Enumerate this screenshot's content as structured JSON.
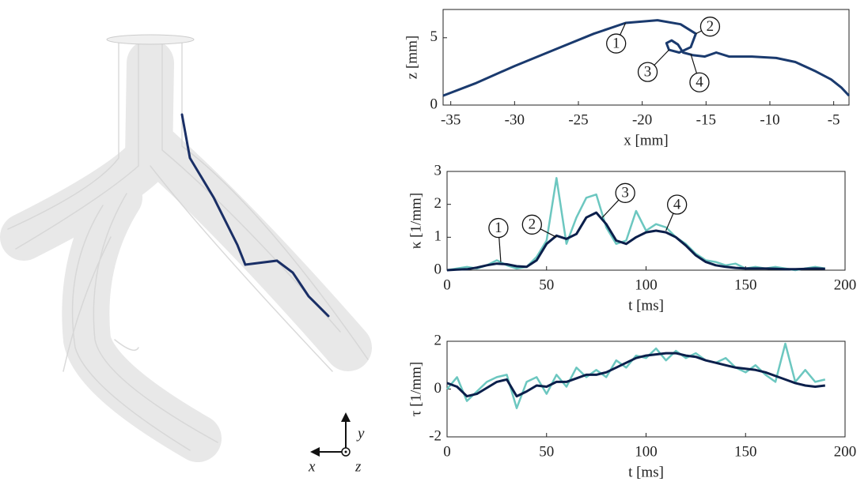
{
  "illustration": {
    "x_label": "x",
    "y_label": "y",
    "z_label": "z"
  },
  "chart_data": [
    {
      "type": "line",
      "xlabel": "x [mm]",
      "ylabel": "z [mm]",
      "xlim": [
        -35.6,
        -3.8
      ],
      "ylim": [
        0,
        7.1
      ],
      "xticks": [
        -35,
        -30,
        -25,
        -20,
        -15,
        -10,
        -5
      ],
      "yticks": [
        0,
        5
      ],
      "x": [
        -35.6,
        -33.1,
        -30,
        -26.9,
        -23.8,
        -21.3,
        -18.8,
        -17,
        -15.8,
        -16.2,
        -17.1,
        -17.9,
        -18.1,
        -17.7,
        -17.2,
        -16.8,
        -16,
        -15.1,
        -14.2,
        -13.2,
        -11.4,
        -9.5,
        -8,
        -6.4,
        -5.2,
        -4.4,
        -3.8
      ],
      "series": [
        {
          "color": "#1a3a6e",
          "values": [
            0.7,
            1.6,
            2.9,
            4.1,
            5.3,
            6.1,
            6.3,
            6.0,
            5.3,
            4.3,
            3.9,
            4.1,
            4.6,
            4.8,
            4.5,
            3.9,
            3.7,
            3.6,
            3.9,
            3.6,
            3.6,
            3.5,
            3.2,
            2.5,
            1.9,
            1.3,
            0.7
          ]
        }
      ],
      "annotations": [
        {
          "text": "1",
          "x": -21.3,
          "y": 6.1
        },
        {
          "text": "2",
          "x": -15.8,
          "y": 5.3
        },
        {
          "text": "3",
          "x": -17.9,
          "y": 4.1
        },
        {
          "text": "4",
          "x": -16.2,
          "y": 3.8
        }
      ]
    },
    {
      "type": "line",
      "xlabel": "t [ms]",
      "ylabel": "κ [1/mm]",
      "xlim": [
        0,
        200
      ],
      "ylim": [
        0,
        3
      ],
      "xticks": [
        0,
        50,
        100,
        150,
        200
      ],
      "yticks": [
        0,
        1,
        2,
        3
      ],
      "x": [
        0,
        5,
        10,
        15,
        20,
        25,
        30,
        35,
        40,
        45,
        50,
        55,
        60,
        65,
        70,
        75,
        80,
        85,
        90,
        95,
        100,
        105,
        110,
        115,
        120,
        125,
        130,
        135,
        140,
        145,
        150,
        155,
        160,
        165,
        170,
        175,
        180,
        185,
        190
      ],
      "series": [
        {
          "color": "#6cc7c0",
          "values": [
            0,
            0.05,
            0.1,
            0.05,
            0.15,
            0.3,
            0.15,
            0.05,
            0.1,
            0.4,
            0.9,
            2.8,
            0.8,
            1.6,
            2.2,
            2.3,
            1.3,
            0.8,
            0.9,
            1.8,
            1.2,
            1.4,
            1.3,
            1.0,
            0.8,
            0.5,
            0.3,
            0.25,
            0.15,
            0.2,
            0.05,
            0.1,
            0.05,
            0.1,
            0.05,
            0,
            0.05,
            0.1,
            0.05
          ]
        },
        {
          "color": "#0b1f4b",
          "values": [
            0,
            0.02,
            0.03,
            0.08,
            0.15,
            0.2,
            0.18,
            0.12,
            0.1,
            0.3,
            0.8,
            1.05,
            0.95,
            1.1,
            1.6,
            1.75,
            1.4,
            0.9,
            0.8,
            1.0,
            1.15,
            1.2,
            1.15,
            1.0,
            0.75,
            0.45,
            0.25,
            0.15,
            0.1,
            0.07,
            0.05,
            0.05,
            0.05,
            0.04,
            0.03,
            0.03,
            0.04,
            0.05,
            0.04
          ]
        }
      ],
      "annotations": [
        {
          "text": "1",
          "x": 27,
          "y": 0.25
        },
        {
          "text": "2",
          "x": 55,
          "y": 1.0
        },
        {
          "text": "3",
          "x": 78,
          "y": 1.6
        },
        {
          "text": "4",
          "x": 110,
          "y": 1.2
        }
      ]
    },
    {
      "type": "line",
      "xlabel": "t [ms]",
      "ylabel": "τ [1/mm]",
      "xlim": [
        0,
        200
      ],
      "ylim": [
        -2,
        2
      ],
      "xticks": [
        0,
        50,
        100,
        150,
        200
      ],
      "yticks": [
        -2,
        0,
        2
      ],
      "x": [
        0,
        5,
        10,
        15,
        20,
        25,
        30,
        35,
        40,
        45,
        50,
        55,
        60,
        65,
        70,
        75,
        80,
        85,
        90,
        95,
        100,
        105,
        110,
        115,
        120,
        125,
        130,
        135,
        140,
        145,
        150,
        155,
        160,
        165,
        170,
        175,
        180,
        185,
        190
      ],
      "series": [
        {
          "color": "#6cc7c0",
          "values": [
            0,
            0.5,
            -0.5,
            -0.1,
            0.3,
            0.5,
            0.6,
            -0.8,
            0.3,
            0.5,
            -0.2,
            0.6,
            0.1,
            0.9,
            0.5,
            0.8,
            0.5,
            1.2,
            0.9,
            1.4,
            1.3,
            1.7,
            1.2,
            1.6,
            1.3,
            1.5,
            1.2,
            1.1,
            1.3,
            0.9,
            0.7,
            1.0,
            0.6,
            0.3,
            1.9,
            0.3,
            0.8,
            0.3,
            0.4
          ]
        },
        {
          "color": "#0b1f4b",
          "values": [
            0.25,
            0.1,
            -0.3,
            -0.2,
            0.05,
            0.3,
            0.4,
            -0.3,
            -0.1,
            0.15,
            0.1,
            0.3,
            0.3,
            0.45,
            0.6,
            0.6,
            0.7,
            0.9,
            1.1,
            1.3,
            1.4,
            1.45,
            1.5,
            1.5,
            1.4,
            1.35,
            1.2,
            1.1,
            1.0,
            0.9,
            0.85,
            0.8,
            0.7,
            0.55,
            0.4,
            0.25,
            0.15,
            0.1,
            0.15
          ]
        }
      ],
      "annotations": []
    }
  ]
}
